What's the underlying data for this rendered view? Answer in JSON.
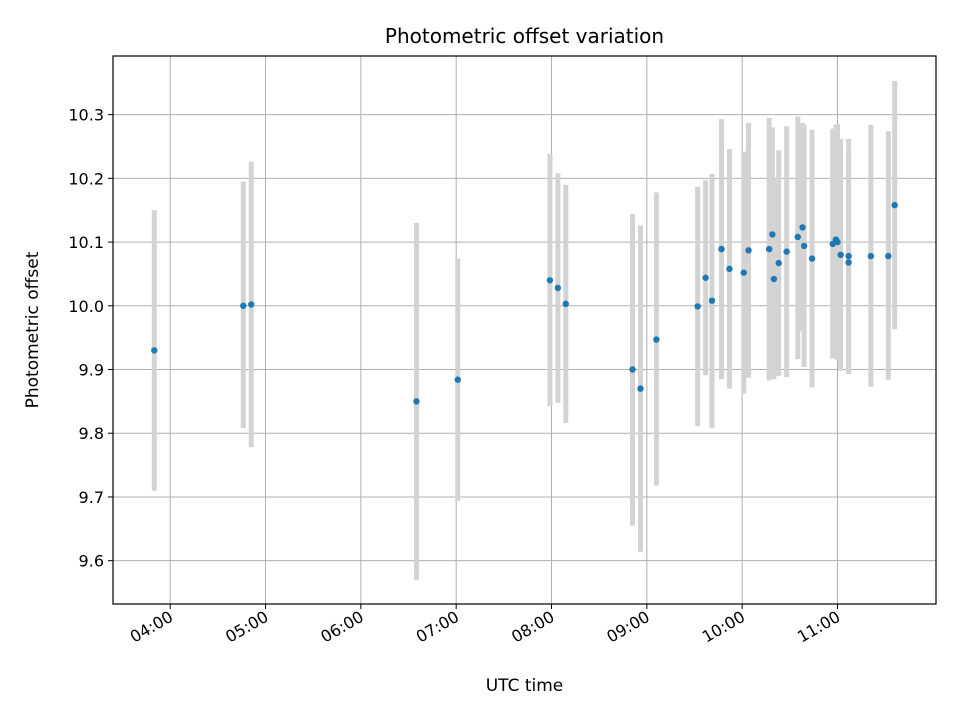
{
  "chart_data": {
    "type": "scatter",
    "title": "Photometric offset variation",
    "xlabel": "UTC time",
    "ylabel": "Photometric offset",
    "x_axis_type": "time",
    "xlim": [
      "03:24",
      "12:02"
    ],
    "ylim": [
      9.532,
      10.392
    ],
    "x_ticks": [
      "04:00",
      "05:00",
      "06:00",
      "07:00",
      "08:00",
      "09:00",
      "10:00",
      "11:00"
    ],
    "y_ticks": [
      9.6,
      9.7,
      9.8,
      9.9,
      10.0,
      10.1,
      10.2,
      10.3
    ],
    "grid": true,
    "point_color": "#1f77b4",
    "errorbar_color": "#d3d3d3",
    "points": [
      {
        "x": "03:50",
        "y": 9.93,
        "ylow": 9.71,
        "yhigh": 10.15
      },
      {
        "x": "04:46",
        "y": 10.0,
        "ylow": 9.808,
        "yhigh": 10.195
      },
      {
        "x": "04:51",
        "y": 10.002,
        "ylow": 9.778,
        "yhigh": 10.226
      },
      {
        "x": "06:35",
        "y": 9.85,
        "ylow": 9.57,
        "yhigh": 10.13
      },
      {
        "x": "07:01",
        "y": 9.884,
        "ylow": 9.694,
        "yhigh": 10.074
      },
      {
        "x": "07:59",
        "y": 10.04,
        "ylow": 9.843,
        "yhigh": 10.238
      },
      {
        "x": "08:04",
        "y": 10.028,
        "ylow": 9.848,
        "yhigh": 10.208
      },
      {
        "x": "08:09",
        "y": 10.003,
        "ylow": 9.816,
        "yhigh": 10.19
      },
      {
        "x": "08:51",
        "y": 9.9,
        "ylow": 9.655,
        "yhigh": 10.144
      },
      {
        "x": "08:56",
        "y": 9.87,
        "ylow": 9.614,
        "yhigh": 10.126
      },
      {
        "x": "09:06",
        "y": 9.947,
        "ylow": 9.718,
        "yhigh": 10.178
      },
      {
        "x": "09:32",
        "y": 9.999,
        "ylow": 9.811,
        "yhigh": 10.187
      },
      {
        "x": "09:37",
        "y": 10.044,
        "ylow": 9.891,
        "yhigh": 10.197
      },
      {
        "x": "09:41",
        "y": 10.008,
        "ylow": 9.808,
        "yhigh": 10.207
      },
      {
        "x": "09:47",
        "y": 10.089,
        "ylow": 9.885,
        "yhigh": 10.293
      },
      {
        "x": "09:52",
        "y": 10.058,
        "ylow": 9.87,
        "yhigh": 10.246
      },
      {
        "x": "10:01",
        "y": 10.052,
        "ylow": 9.862,
        "yhigh": 10.242
      },
      {
        "x": "10:04",
        "y": 10.087,
        "ylow": 9.887,
        "yhigh": 10.287
      },
      {
        "x": "10:17",
        "y": 10.089,
        "ylow": 9.883,
        "yhigh": 10.295
      },
      {
        "x": "10:19",
        "y": 10.112,
        "ylow": 9.946,
        "yhigh": 10.28
      },
      {
        "x": "10:20",
        "y": 10.042,
        "ylow": 9.885,
        "yhigh": 10.2
      },
      {
        "x": "10:23",
        "y": 10.067,
        "ylow": 9.89,
        "yhigh": 10.244
      },
      {
        "x": "10:28",
        "y": 10.085,
        "ylow": 9.888,
        "yhigh": 10.282
      },
      {
        "x": "10:35",
        "y": 10.108,
        "ylow": 9.916,
        "yhigh": 10.297
      },
      {
        "x": "10:38",
        "y": 10.123,
        "ylow": 9.96,
        "yhigh": 10.287
      },
      {
        "x": "10:39",
        "y": 10.094,
        "ylow": 9.904,
        "yhigh": 10.284
      },
      {
        "x": "10:44",
        "y": 10.074,
        "ylow": 9.872,
        "yhigh": 10.276
      },
      {
        "x": "10:57",
        "y": 10.097,
        "ylow": 9.917,
        "yhigh": 10.278
      },
      {
        "x": "10:59",
        "y": 10.104,
        "ylow": 9.924,
        "yhigh": 10.284
      },
      {
        "x": "11:00",
        "y": 10.1,
        "ylow": 9.915,
        "yhigh": 10.285
      },
      {
        "x": "11:02",
        "y": 10.08,
        "ylow": 9.898,
        "yhigh": 10.262
      },
      {
        "x": "11:07",
        "y": 10.078,
        "ylow": 9.893,
        "yhigh": 10.262
      },
      {
        "x": "11:07",
        "y": 10.068,
        "ylow": 9.897,
        "yhigh": 10.24
      },
      {
        "x": "11:21",
        "y": 10.078,
        "ylow": 9.873,
        "yhigh": 10.284
      },
      {
        "x": "11:32",
        "y": 10.078,
        "ylow": 9.884,
        "yhigh": 10.274
      },
      {
        "x": "11:36",
        "y": 10.158,
        "ylow": 9.963,
        "yhigh": 10.353
      }
    ]
  }
}
